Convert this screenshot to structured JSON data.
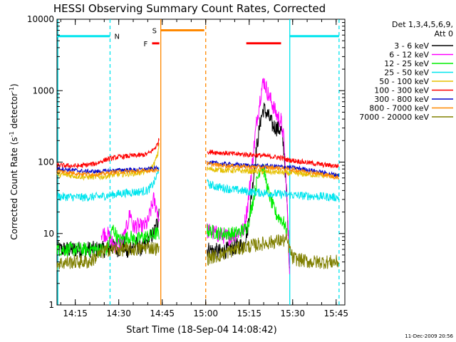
{
  "chart_data": {
    "type": "line",
    "title": "HESSI Observing Summary Count Rates, Corrected",
    "xlabel": "Start Time (18-Sep-04 14:08:42)",
    "ylabel_main": "Corrected Count Rate (s",
    "ylabel_sup1": "-1",
    "ylabel_mid": " detector",
    "ylabel_sup2": "-1",
    "ylabel_end": ")",
    "date_stamp": "11-Dec-2009 20:56",
    "y_scale": "log",
    "ylim": [
      1,
      10000
    ],
    "xlim": [
      "14:08:42",
      "15:48:00"
    ],
    "x_ticks": [
      "14:15",
      "14:30",
      "14:45",
      "15:00",
      "15:15",
      "15:30",
      "15:45"
    ],
    "y_ticks": [
      "1",
      "10",
      "100",
      "1000",
      "10000"
    ],
    "legend": {
      "position": "right",
      "header_line1": "Det 1,3,4,5,6,9,",
      "header_line2": "Att 0",
      "entries": [
        {
          "label": "3 - 6 keV",
          "color": "#000000"
        },
        {
          "label": "6 - 12 keV",
          "color": "#ff00ff"
        },
        {
          "label": "12 - 25 keV",
          "color": "#00ee00"
        },
        {
          "label": "25 - 50 keV",
          "color": "#00e5ee"
        },
        {
          "label": "50 - 100 keV",
          "color": "#e5c000"
        },
        {
          "label": "100 - 300 keV",
          "color": "#ff0000"
        },
        {
          "label": "300 - 800 keV",
          "color": "#0000cc"
        },
        {
          "label": "800 - 7000 keV",
          "color": "#ff8800"
        },
        {
          "label": "7000 - 20000 keV",
          "color": "#808000"
        }
      ]
    },
    "flags": [
      {
        "label": "N",
        "color": "#00e5ee",
        "segments": [
          [
            "14:08:42",
            "14:27:00"
          ],
          [
            "15:29:00",
            "15:46:00"
          ]
        ],
        "level": 5800
      },
      {
        "label": "S",
        "color": "#ff8800",
        "segments": [
          [
            "14:44:30",
            "14:59:30"
          ]
        ],
        "level": 7000
      },
      {
        "label": "F",
        "color": "#ff0000",
        "segments": [
          [
            "14:41:30",
            "14:44:00"
          ],
          [
            "15:14:00",
            "15:26:00"
          ]
        ],
        "level": 4600
      }
    ],
    "vlines": [
      {
        "time": "14:09:00",
        "color": "#00e5ee",
        "style": "solid"
      },
      {
        "time": "14:27:00",
        "color": "#00e5ee",
        "style": "dashed"
      },
      {
        "time": "14:44:30",
        "color": "#ff8800",
        "style": "solid"
      },
      {
        "time": "15:00:00",
        "color": "#ff8800",
        "style": "dashed"
      },
      {
        "time": "15:29:00",
        "color": "#00e5ee",
        "style": "solid"
      },
      {
        "time": "15:46:00",
        "color": "#00e5ee",
        "style": "dashed"
      }
    ],
    "series": [
      {
        "name": "3 - 6 keV",
        "color": "#000000",
        "noise": 0.12,
        "points": [
          [
            "14:08:42",
            6
          ],
          [
            "14:24:00",
            6
          ],
          [
            "14:26:00",
            6
          ],
          [
            "14:28:00",
            6.5
          ],
          [
            "14:30:00",
            6
          ],
          [
            "14:32:00",
            7
          ],
          [
            "14:33:00",
            5
          ],
          [
            "14:34:00",
            6.5
          ],
          [
            "14:36:00",
            7
          ],
          [
            "14:38:00",
            6
          ],
          [
            "14:40:00",
            8
          ],
          [
            "14:42:00",
            10
          ],
          [
            "14:43:30",
            15
          ],
          [
            "14:44:00",
            25
          ],
          [
            "15:00:30",
            6
          ],
          [
            "15:05:00",
            5.5
          ],
          [
            "15:08:00",
            6
          ],
          [
            "15:10:00",
            6.5
          ],
          [
            "15:13:00",
            7
          ],
          [
            "15:14:30",
            12
          ],
          [
            "15:16:00",
            40
          ],
          [
            "15:17:30",
            150
          ],
          [
            "15:19:00",
            400
          ],
          [
            "15:20:00",
            560
          ],
          [
            "15:21:30",
            450
          ],
          [
            "15:23:00",
            330
          ],
          [
            "15:24:30",
            300
          ],
          [
            "15:26:00",
            280
          ],
          [
            "15:27:00",
            150
          ],
          [
            "15:28:00",
            30
          ],
          [
            "15:29:00",
            3
          ]
        ]
      },
      {
        "name": "6 - 12 keV",
        "color": "#ff00ff",
        "noise": 0.12,
        "points": [
          [
            "14:24:00",
            10
          ],
          [
            "14:26:00",
            10
          ],
          [
            "14:28:00",
            7
          ],
          [
            "14:30:00",
            7
          ],
          [
            "14:32:00",
            9
          ],
          [
            "14:34:00",
            20
          ],
          [
            "14:35:00",
            12
          ],
          [
            "14:36:00",
            13
          ],
          [
            "14:38:00",
            12
          ],
          [
            "14:40:00",
            14
          ],
          [
            "14:42:00",
            30
          ],
          [
            "14:43:30",
            20
          ],
          [
            "14:44:00",
            15
          ],
          [
            "15:00:30",
            11
          ],
          [
            "15:05:00",
            9.5
          ],
          [
            "15:08:00",
            9
          ],
          [
            "15:10:00",
            10
          ],
          [
            "15:13:00",
            11
          ],
          [
            "15:14:30",
            25
          ],
          [
            "15:16:00",
            90
          ],
          [
            "15:17:30",
            350
          ],
          [
            "15:19:00",
            900
          ],
          [
            "15:20:00",
            1400
          ],
          [
            "15:21:30",
            900
          ],
          [
            "15:23:00",
            650
          ],
          [
            "15:24:30",
            450
          ],
          [
            "15:26:00",
            380
          ],
          [
            "15:27:00",
            200
          ],
          [
            "15:28:00",
            30
          ],
          [
            "15:29:00",
            3
          ]
        ]
      },
      {
        "name": "12 - 25 keV",
        "color": "#00ee00",
        "noise": 0.1,
        "points": [
          [
            "14:08:42",
            6
          ],
          [
            "14:24:00",
            6
          ],
          [
            "14:26:00",
            6
          ],
          [
            "14:28:00",
            12
          ],
          [
            "14:30:00",
            8
          ],
          [
            "14:32:00",
            8.5
          ],
          [
            "14:34:00",
            9
          ],
          [
            "14:36:00",
            8
          ],
          [
            "14:38:00",
            9
          ],
          [
            "14:40:00",
            9
          ],
          [
            "14:43:00",
            10
          ],
          [
            "14:44:00",
            10
          ],
          [
            "15:00:30",
            11
          ],
          [
            "15:05:00",
            10
          ],
          [
            "15:08:00",
            10
          ],
          [
            "15:10:00",
            10
          ],
          [
            "15:13:00",
            11
          ],
          [
            "15:14:30",
            13
          ],
          [
            "15:16:00",
            25
          ],
          [
            "15:17:30",
            50
          ],
          [
            "15:19:00",
            90
          ],
          [
            "15:20:00",
            80
          ],
          [
            "15:21:30",
            40
          ],
          [
            "15:23:00",
            25
          ],
          [
            "15:24:30",
            18
          ],
          [
            "15:26:00",
            16
          ],
          [
            "15:27:00",
            14
          ],
          [
            "15:28:00",
            10
          ]
        ]
      },
      {
        "name": "25 - 50 keV",
        "color": "#00e5ee",
        "noise": 0.06,
        "points": [
          [
            "14:08:42",
            33
          ],
          [
            "14:18:00",
            32
          ],
          [
            "14:24:00",
            33
          ],
          [
            "14:28:00",
            35
          ],
          [
            "14:32:00",
            37
          ],
          [
            "14:36:00",
            38
          ],
          [
            "14:40:00",
            40
          ],
          [
            "14:42:00",
            50
          ],
          [
            "14:43:30",
            70
          ],
          [
            "14:44:00",
            100
          ],
          [
            "15:00:30",
            50
          ],
          [
            "15:03:00",
            46
          ],
          [
            "15:08:00",
            42
          ],
          [
            "15:12:00",
            40
          ],
          [
            "15:16:00",
            38
          ],
          [
            "15:20:00",
            37
          ],
          [
            "15:24:00",
            36
          ],
          [
            "15:28:00",
            35
          ],
          [
            "15:32:00",
            34
          ],
          [
            "15:40:00",
            33
          ],
          [
            "15:46:00",
            32
          ]
        ]
      },
      {
        "name": "50 - 100 keV",
        "color": "#e5c000",
        "noise": 0.04,
        "points": [
          [
            "14:08:42",
            68
          ],
          [
            "14:18:00",
            62
          ],
          [
            "14:24:00",
            62
          ],
          [
            "14:28:00",
            66
          ],
          [
            "14:32:00",
            68
          ],
          [
            "14:36:00",
            70
          ],
          [
            "14:40:00",
            75
          ],
          [
            "14:42:00",
            90
          ],
          [
            "14:43:30",
            130
          ],
          [
            "14:44:00",
            200
          ],
          [
            "15:00:30",
            80
          ],
          [
            "15:05:00",
            78
          ],
          [
            "15:10:00",
            76
          ],
          [
            "15:14:00",
            75
          ],
          [
            "15:18:00",
            74
          ],
          [
            "15:22:00",
            73
          ],
          [
            "15:26:00",
            72
          ],
          [
            "15:28:00",
            70
          ],
          [
            "15:34:00",
            68
          ],
          [
            "15:40:00",
            65
          ],
          [
            "15:46:00",
            63
          ]
        ]
      },
      {
        "name": "100 - 300 keV",
        "color": "#ff0000",
        "noise": 0.035,
        "points": [
          [
            "14:08:42",
            90
          ],
          [
            "14:16:00",
            88
          ],
          [
            "14:22:00",
            95
          ],
          [
            "14:26:00",
            110
          ],
          [
            "14:30:00",
            118
          ],
          [
            "14:34:00",
            122
          ],
          [
            "14:38:00",
            125
          ],
          [
            "14:40:00",
            130
          ],
          [
            "14:42:00",
            150
          ],
          [
            "14:43:30",
            180
          ],
          [
            "14:44:00",
            220
          ],
          [
            "15:00:30",
            140
          ],
          [
            "15:05:00",
            135
          ],
          [
            "15:10:00",
            130
          ],
          [
            "15:14:00",
            128
          ],
          [
            "15:18:00",
            125
          ],
          [
            "15:22:00",
            120
          ],
          [
            "15:26:00",
            115
          ],
          [
            "15:28:00",
            108
          ],
          [
            "15:34:00",
            100
          ],
          [
            "15:40:00",
            92
          ],
          [
            "15:46:00",
            88
          ]
        ]
      },
      {
        "name": "300 - 800 keV",
        "color": "#0000cc",
        "noise": 0.03,
        "points": [
          [
            "14:08:42",
            82
          ],
          [
            "14:18:00",
            74
          ],
          [
            "14:24:00",
            74
          ],
          [
            "14:28:00",
            76
          ],
          [
            "14:32:00",
            78
          ],
          [
            "14:36:00",
            78
          ],
          [
            "14:40:00",
            80
          ],
          [
            "14:44:00",
            82
          ],
          [
            "15:00:30",
            100
          ],
          [
            "15:05:00",
            95
          ],
          [
            "15:10:00",
            92
          ],
          [
            "15:14:00",
            90
          ],
          [
            "15:18:00",
            88
          ],
          [
            "15:22:00",
            88
          ],
          [
            "15:26:00",
            86
          ],
          [
            "15:28:00",
            85
          ],
          [
            "15:34:00",
            80
          ],
          [
            "15:40:00",
            72
          ],
          [
            "15:46:00",
            65
          ]
        ]
      },
      {
        "name": "800 - 7000 keV",
        "color": "#ff8800",
        "noise": 0.03,
        "points": [
          [
            "14:08:42",
            75
          ],
          [
            "14:18:00",
            68
          ],
          [
            "14:24:00",
            68
          ],
          [
            "14:28:00",
            72
          ],
          [
            "14:32:00",
            74
          ],
          [
            "14:36:00",
            74
          ],
          [
            "14:40:00",
            76
          ],
          [
            "14:44:00",
            78
          ],
          [
            "15:00:30",
            95
          ],
          [
            "15:05:00",
            90
          ],
          [
            "15:10:00",
            88
          ],
          [
            "15:14:00",
            86
          ],
          [
            "15:18:00",
            85
          ],
          [
            "15:22:00",
            84
          ],
          [
            "15:26:00",
            82
          ],
          [
            "15:28:00",
            80
          ],
          [
            "15:34:00",
            75
          ],
          [
            "15:40:00",
            68
          ],
          [
            "15:46:00",
            60
          ]
        ]
      },
      {
        "name": "7000 - 20000 keV",
        "color": "#808000",
        "noise": 0.1,
        "points": [
          [
            "14:08:42",
            3.8
          ],
          [
            "14:14:00",
            4
          ],
          [
            "14:20:00",
            4
          ],
          [
            "14:23:00",
            5
          ],
          [
            "14:26:00",
            6
          ],
          [
            "14:28:00",
            6
          ],
          [
            "14:32:00",
            6
          ],
          [
            "14:36:00",
            6
          ],
          [
            "14:40:00",
            6.5
          ],
          [
            "14:44:00",
            6
          ],
          [
            "15:00:30",
            4.5
          ],
          [
            "15:05:00",
            5
          ],
          [
            "15:10:00",
            6
          ],
          [
            "15:14:00",
            6.5
          ],
          [
            "15:18:00",
            7
          ],
          [
            "15:22:00",
            7.5
          ],
          [
            "15:26:00",
            8
          ],
          [
            "15:28:00",
            8
          ],
          [
            "15:30:00",
            4.5
          ],
          [
            "15:36:00",
            4
          ],
          [
            "15:42:00",
            4
          ],
          [
            "15:46:00",
            4
          ]
        ]
      }
    ]
  }
}
